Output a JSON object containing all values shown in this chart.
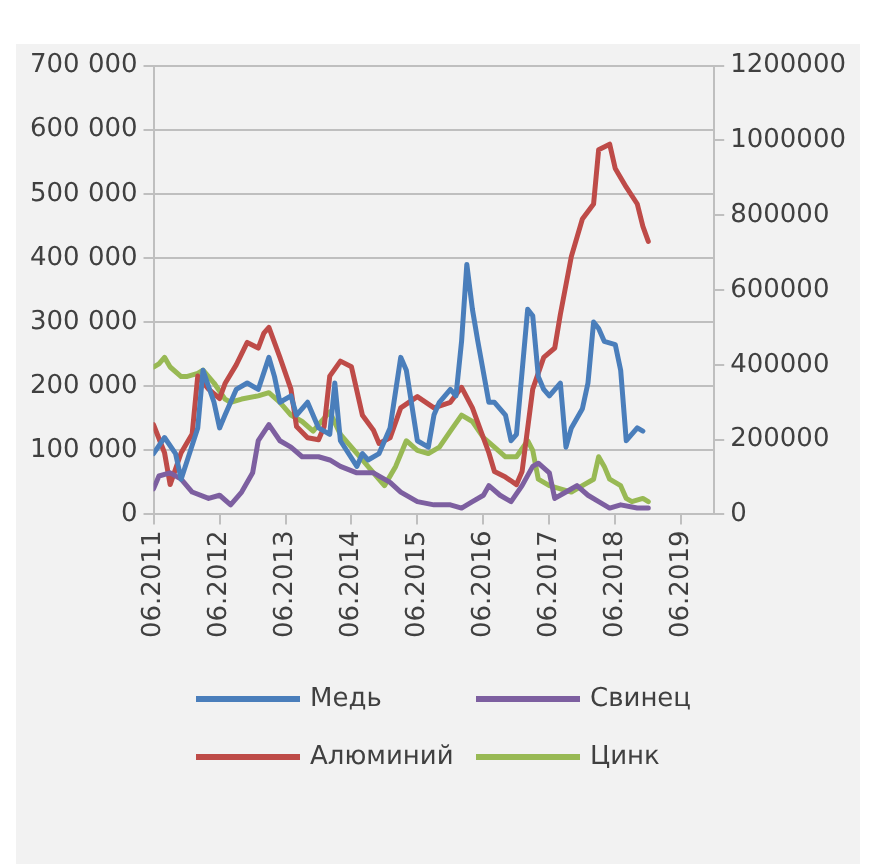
{
  "chart_data": {
    "type": "line",
    "legend": "bottom",
    "grid": "y",
    "xlim": [
      "2011-06",
      "2019-12"
    ],
    "xticks": [
      {
        "value": "2011-06",
        "label": "06.2011"
      },
      {
        "value": "2012-06",
        "label": "06.2012"
      },
      {
        "value": "2013-06",
        "label": "06.2013"
      },
      {
        "value": "2014-06",
        "label": "06.2014"
      },
      {
        "value": "2015-06",
        "label": "06.2015"
      },
      {
        "value": "2016-06",
        "label": "06.2016"
      },
      {
        "value": "2017-06",
        "label": "06.2017"
      },
      {
        "value": "2018-06",
        "label": "06.2018"
      },
      {
        "value": "2019-06",
        "label": "06.2019"
      }
    ],
    "ylim": [
      0,
      700000
    ],
    "yticks": [
      0,
      {
        "value": 100000,
        "label": "100 000"
      },
      {
        "value": 200000,
        "label": "200 000"
      },
      {
        "value": 300000,
        "label": "300 000"
      },
      {
        "value": 400000,
        "label": "400 000"
      },
      {
        "value": 500000,
        "label": "500 000"
      },
      {
        "value": 600000,
        "label": "600 000"
      },
      {
        "value": 700000,
        "label": "700 000"
      }
    ],
    "y2lim": [
      0,
      1200000
    ],
    "y2ticks": [
      0,
      200000,
      400000,
      600000,
      800000,
      1000000,
      1200000
    ],
    "series": [
      {
        "name": "Медь",
        "color": "#4a7ebb",
        "x": [
          "2011-06",
          "2011-08",
          "2011-10",
          "2011-11",
          "2012-02",
          "2012-03",
          "2012-05",
          "2012-06",
          "2012-07",
          "2012-09",
          "2012-11",
          "2013-01",
          "2013-03",
          "2013-04",
          "2013-05",
          "2013-07",
          "2013-08",
          "2013-10",
          "2013-12",
          "2014-02",
          "2014-03",
          "2014-04",
          "2014-07",
          "2014-08",
          "2014-09",
          "2014-11",
          "2015-01",
          "2015-03",
          "2015-04",
          "2015-06",
          "2015-08",
          "2015-09",
          "2015-10",
          "2015-12",
          "2016-01",
          "2016-02",
          "2016-03",
          "2016-04",
          "2016-05",
          "2016-07",
          "2016-08",
          "2016-10",
          "2016-11",
          "2016-12",
          "2017-02",
          "2017-03",
          "2017-04",
          "2017-05",
          "2017-06",
          "2017-08",
          "2017-09",
          "2017-10",
          "2017-12",
          "2018-01",
          "2018-02",
          "2018-03",
          "2018-04",
          "2018-06",
          "2018-07",
          "2018-08",
          "2018-10",
          "2018-11"
        ],
        "values": [
          95000,
          120000,
          95000,
          55000,
          135000,
          225000,
          175000,
          135000,
          155000,
          195000,
          205000,
          195000,
          245000,
          215000,
          175000,
          185000,
          155000,
          175000,
          135000,
          125000,
          205000,
          115000,
          75000,
          95000,
          85000,
          95000,
          135000,
          245000,
          225000,
          115000,
          105000,
          155000,
          175000,
          195000,
          185000,
          270000,
          390000,
          320000,
          270000,
          175000,
          175000,
          155000,
          115000,
          125000,
          320000,
          310000,
          215000,
          195000,
          185000,
          205000,
          105000,
          135000,
          165000,
          205000,
          300000,
          290000,
          270000,
          265000,
          225000,
          115000,
          135000,
          130000
        ]
      },
      {
        "name": "Свинец",
        "color": "#7d5fa0",
        "x": [
          "2011-06",
          "2011-07",
          "2011-09",
          "2011-11",
          "2012-01",
          "2012-04",
          "2012-06",
          "2012-08",
          "2012-10",
          "2012-12",
          "2013-01",
          "2013-03",
          "2013-05",
          "2013-07",
          "2013-09",
          "2013-12",
          "2014-02",
          "2014-04",
          "2014-07",
          "2014-10",
          "2015-01",
          "2015-03",
          "2015-06",
          "2015-09",
          "2015-12",
          "2016-02",
          "2016-04",
          "2016-06",
          "2016-07",
          "2016-09",
          "2016-11",
          "2017-01",
          "2017-03",
          "2017-04",
          "2017-06",
          "2017-07",
          "2017-09",
          "2017-11",
          "2018-01",
          "2018-03",
          "2018-05",
          "2018-07",
          "2018-10",
          "2018-12"
        ],
        "values": [
          40000,
          60000,
          65000,
          55000,
          35000,
          25000,
          30000,
          15000,
          35000,
          65000,
          115000,
          140000,
          115000,
          105000,
          90000,
          90000,
          85000,
          75000,
          65000,
          65000,
          50000,
          35000,
          20000,
          15000,
          15000,
          10000,
          20000,
          30000,
          45000,
          30000,
          20000,
          45000,
          75000,
          80000,
          65000,
          25000,
          35000,
          45000,
          30000,
          20000,
          10000,
          15000,
          10000,
          10000
        ]
      },
      {
        "name": "Алюминий",
        "color": "#be4b48",
        "axis": "y2",
        "x": [
          "2011-06",
          "2011-08",
          "2011-09",
          "2011-11",
          "2012-01",
          "2012-02",
          "2012-04",
          "2012-06",
          "2012-07",
          "2012-09",
          "2012-11",
          "2013-01",
          "2013-02",
          "2013-03",
          "2013-05",
          "2013-07",
          "2013-08",
          "2013-10",
          "2013-12",
          "2014-01",
          "2014-02",
          "2014-04",
          "2014-06",
          "2014-08",
          "2014-10",
          "2014-11",
          "2015-01",
          "2015-03",
          "2015-06",
          "2015-09",
          "2015-12",
          "2016-02",
          "2016-04",
          "2016-07",
          "2016-08",
          "2016-10",
          "2016-12",
          "2017-01",
          "2017-03",
          "2017-05",
          "2017-07",
          "2017-08",
          "2017-10",
          "2017-12",
          "2018-02",
          "2018-03",
          "2018-05",
          "2018-06",
          "2018-08",
          "2018-10",
          "2018-11",
          "2018-12"
        ],
        "values": [
          240000,
          165000,
          80000,
          165000,
          215000,
          370000,
          335000,
          310000,
          350000,
          400000,
          460000,
          445000,
          485000,
          500000,
          420000,
          335000,
          235000,
          205000,
          200000,
          235000,
          370000,
          410000,
          395000,
          265000,
          225000,
          190000,
          205000,
          285000,
          315000,
          285000,
          300000,
          340000,
          285000,
          165000,
          115000,
          100000,
          80000,
          115000,
          335000,
          420000,
          445000,
          535000,
          690000,
          790000,
          830000,
          975000,
          990000,
          925000,
          875000,
          830000,
          770000,
          730000
        ]
      },
      {
        "name": "Цинк",
        "color": "#98b954",
        "x": [
          "2011-06",
          "2011-07",
          "2011-08",
          "2011-09",
          "2011-11",
          "2011-12",
          "2012-02",
          "2012-03",
          "2012-05",
          "2012-07",
          "2012-08",
          "2012-10",
          "2013-01",
          "2013-03",
          "2013-05",
          "2013-07",
          "2013-09",
          "2013-11",
          "2013-12",
          "2014-02",
          "2014-04",
          "2014-06",
          "2014-08",
          "2014-10",
          "2014-12",
          "2015-02",
          "2015-04",
          "2015-06",
          "2015-08",
          "2015-10",
          "2015-12",
          "2016-02",
          "2016-04",
          "2016-06",
          "2016-08",
          "2016-10",
          "2016-12",
          "2017-02",
          "2017-03",
          "2017-04",
          "2017-06",
          "2017-08",
          "2017-10",
          "2017-12",
          "2018-02",
          "2018-03",
          "2018-04",
          "2018-05",
          "2018-07",
          "2018-08",
          "2018-09",
          "2018-11",
          "2018-12"
        ],
        "values": [
          230000,
          235000,
          245000,
          230000,
          215000,
          215000,
          220000,
          225000,
          205000,
          180000,
          175000,
          180000,
          185000,
          190000,
          175000,
          155000,
          145000,
          130000,
          140000,
          160000,
          125000,
          105000,
          85000,
          65000,
          45000,
          75000,
          115000,
          100000,
          95000,
          105000,
          130000,
          155000,
          145000,
          120000,
          105000,
          90000,
          90000,
          115000,
          100000,
          55000,
          45000,
          40000,
          35000,
          45000,
          55000,
          90000,
          75000,
          55000,
          45000,
          25000,
          20000,
          25000,
          20000
        ]
      }
    ]
  }
}
